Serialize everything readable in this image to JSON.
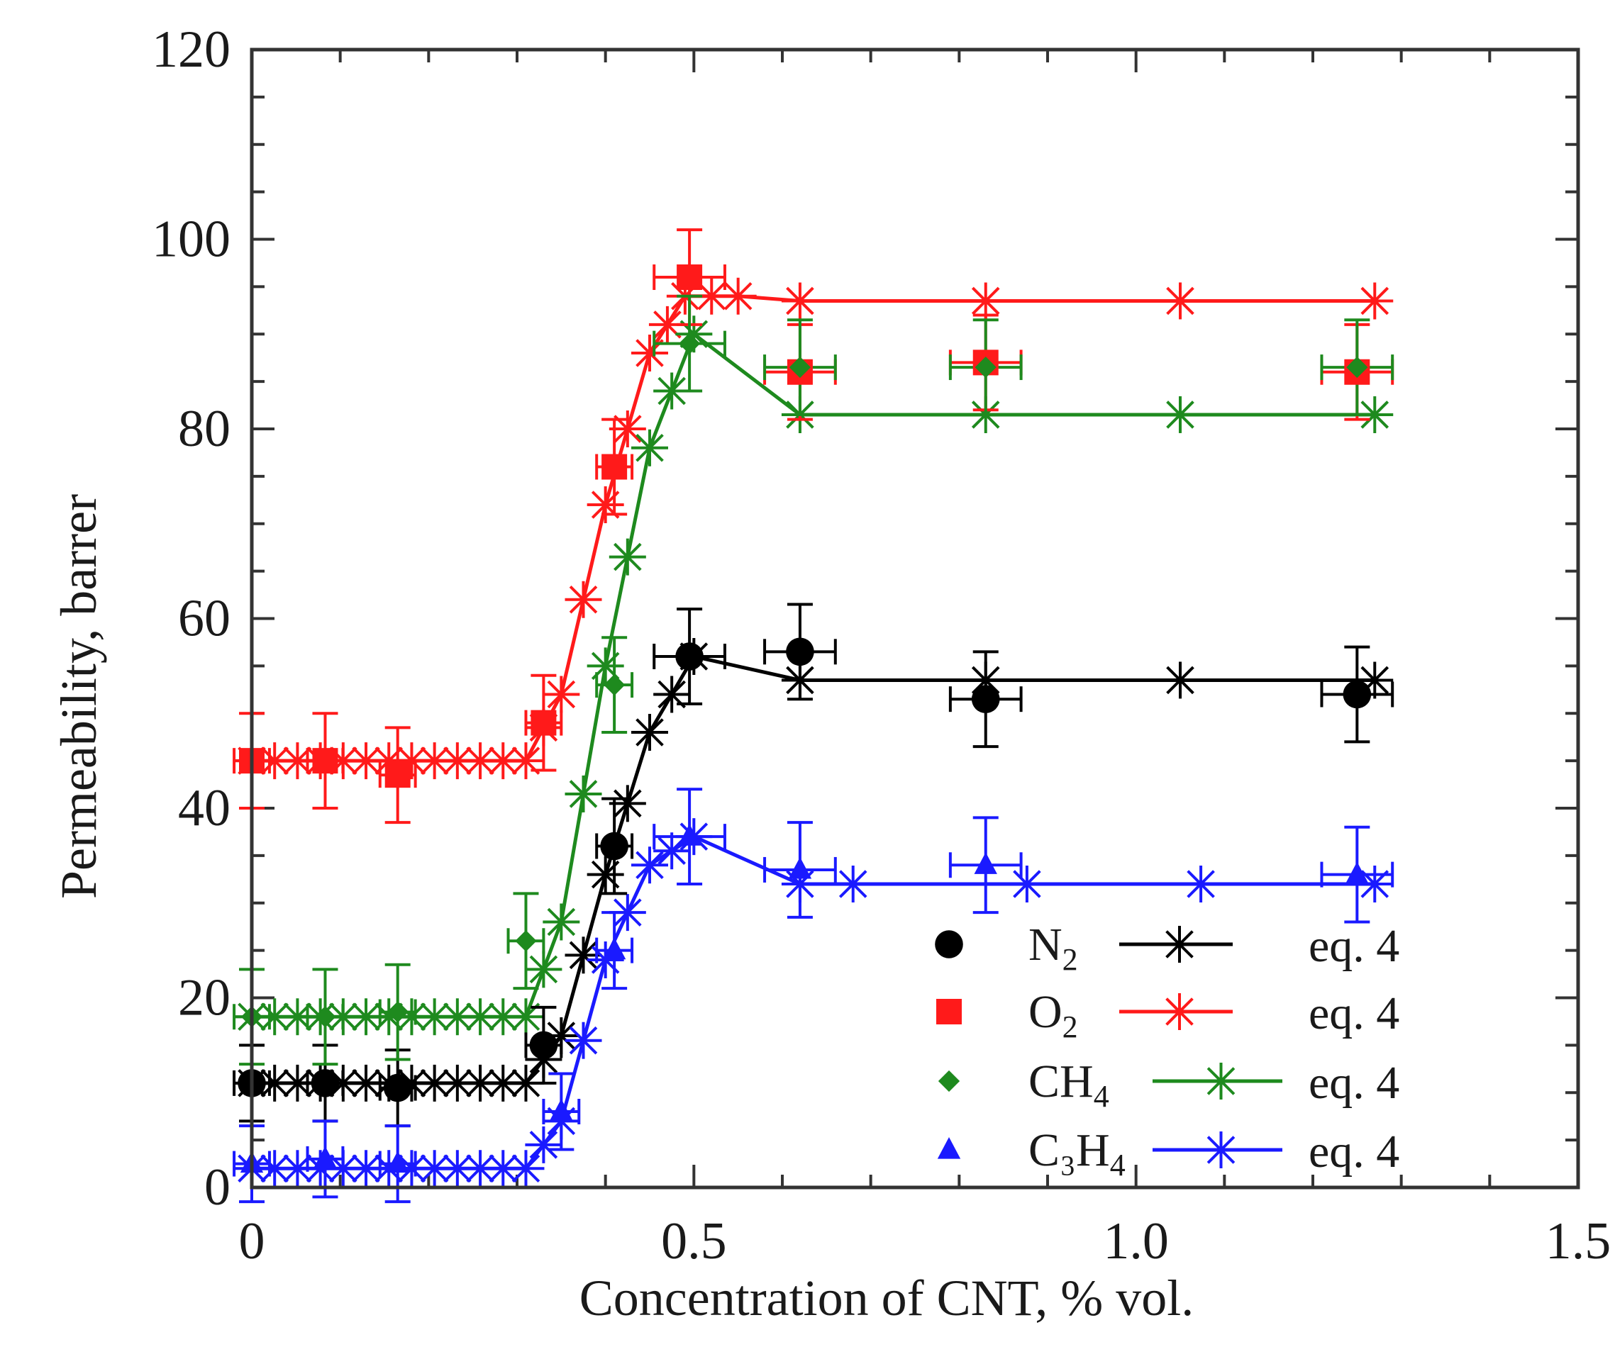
{
  "chart_data": {
    "type": "scatter",
    "title": "",
    "xlabel": "Concentration of CNT, % vol.",
    "ylabel": "Permeability, barrer",
    "xlim": [
      0,
      1.5
    ],
    "ylim": [
      0,
      120
    ],
    "xticks": [
      "0",
      "0.5",
      "1.0",
      "1.5"
    ],
    "yticks": [
      "0",
      "20",
      "40",
      "60",
      "80",
      "100",
      "120"
    ],
    "legend_position": "bottom-right",
    "legend_fit_label": "eq. 4",
    "series": [
      {
        "name": "N2",
        "label_main": "N",
        "label_sub": "2",
        "color": "#000000",
        "marker": "circle",
        "x": [
          0,
          0.083,
          0.165,
          0.33,
          0.41,
          0.495,
          0.62,
          0.83,
          1.25
        ],
        "y": [
          11,
          11,
          10.5,
          15,
          36,
          56,
          56.5,
          51.5,
          52
        ],
        "y_err": [
          4,
          4,
          4,
          4,
          5,
          5,
          5,
          5,
          5
        ],
        "x_err": [
          0.02,
          0.02,
          0.02,
          0.02,
          0.02,
          0.04,
          0.04,
          0.04,
          0.04
        ],
        "fit_x": [
          0,
          0.31,
          0.35,
          0.4,
          0.45,
          0.5,
          0.62,
          0.83,
          1.27
        ],
        "fit_y": [
          11,
          11,
          16,
          33,
          48,
          56,
          53.5,
          53.5,
          53.5
        ]
      },
      {
        "name": "O2",
        "label_main": "O",
        "label_sub": "2",
        "color": "#ff1a1a",
        "marker": "square",
        "x": [
          0,
          0.083,
          0.165,
          0.33,
          0.41,
          0.495,
          0.62,
          0.83,
          1.25
        ],
        "y": [
          45,
          45,
          43.5,
          49,
          76,
          96,
          86,
          87,
          86
        ],
        "y_err": [
          5,
          5,
          5,
          5,
          5,
          5,
          5,
          5,
          5
        ],
        "x_err": [
          0.02,
          0.02,
          0.02,
          0.02,
          0.02,
          0.04,
          0.04,
          0.04,
          0.04
        ],
        "fit_x": [
          0,
          0.31,
          0.35,
          0.4,
          0.45,
          0.49,
          0.55,
          0.62,
          0.83,
          1.27
        ],
        "fit_y": [
          45,
          45,
          52,
          72,
          88,
          94,
          94,
          93.5,
          93.5,
          93.5
        ]
      },
      {
        "name": "CH4",
        "label_main": "CH",
        "label_sub": "4",
        "color": "#1e8a1e",
        "marker": "diamond",
        "x": [
          0,
          0.083,
          0.165,
          0.31,
          0.41,
          0.495,
          0.62,
          0.83,
          1.25
        ],
        "y": [
          18,
          18,
          18.5,
          26,
          53,
          89,
          86.5,
          86.5,
          86.5
        ],
        "y_err": [
          5,
          5,
          5,
          5,
          5,
          5,
          5,
          5,
          5
        ],
        "x_err": [
          0.02,
          0.02,
          0.02,
          0.02,
          0.02,
          0.04,
          0.04,
          0.04,
          0.04
        ],
        "fit_x": [
          0,
          0.31,
          0.35,
          0.4,
          0.45,
          0.5,
          0.62,
          0.83,
          1.27
        ],
        "fit_y": [
          18,
          18,
          28,
          55,
          78,
          90,
          81.5,
          81.5,
          81.5
        ]
      },
      {
        "name": "C3H4",
        "label_main": "C₃H",
        "label_sub": "4",
        "color": "#1a1aff",
        "marker": "triangle",
        "x": [
          0,
          0.083,
          0.165,
          0.35,
          0.41,
          0.495,
          0.62,
          0.83,
          1.25
        ],
        "y": [
          2.5,
          3,
          2.5,
          8,
          25,
          37,
          33.5,
          34,
          33
        ],
        "y_err": [
          4,
          4,
          4,
          4,
          4,
          5,
          5,
          5,
          5
        ],
        "x_err": [
          0.02,
          0.02,
          0.02,
          0.02,
          0.02,
          0.04,
          0.04,
          0.04,
          0.04
        ],
        "fit_x": [
          0,
          0.31,
          0.35,
          0.4,
          0.45,
          0.5,
          0.62,
          0.68,
          1.27
        ],
        "fit_y": [
          2,
          2,
          7,
          24,
          34,
          37,
          32,
          32,
          32
        ]
      }
    ]
  }
}
